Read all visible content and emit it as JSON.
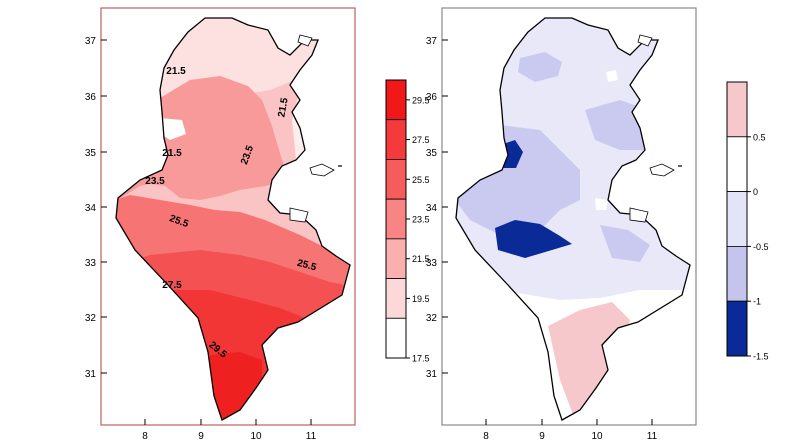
{
  "maps": [
    {
      "x_ticks": [
        "8",
        "9",
        "10",
        "11"
      ],
      "y_ticks": [
        "37",
        "36",
        "35",
        "34",
        "33",
        "32",
        "31"
      ],
      "colorbar_ticks": [
        "29.5",
        "27.5",
        "25.5",
        "23.5",
        "21.5",
        "19.5",
        "17.5"
      ],
      "colorbar_colors": [
        "#f01818",
        "#f43a3a",
        "#f65c5c",
        "#f98484",
        "#fbb0b0",
        "#fdd8d8",
        "#ffffff"
      ],
      "contour_labels": [
        "21.5",
        "21.5",
        "21.5",
        "23.5",
        "23.5",
        "25.5",
        "25.5",
        "27.5",
        "29.5"
      ]
    },
    {
      "x_ticks": [
        "8",
        "9",
        "10",
        "11"
      ],
      "y_ticks": [
        "37",
        "36",
        "35",
        "34",
        "33",
        "32",
        "31"
      ],
      "colorbar_ticks": [
        "0.5",
        "0",
        "-0.5",
        "-1",
        "-1.5"
      ],
      "colorbar_colors": [
        "#f6c8cc",
        "#ffffff",
        "#e4e4f8",
        "#c4c4ee",
        "#0a2a98"
      ]
    }
  ]
}
